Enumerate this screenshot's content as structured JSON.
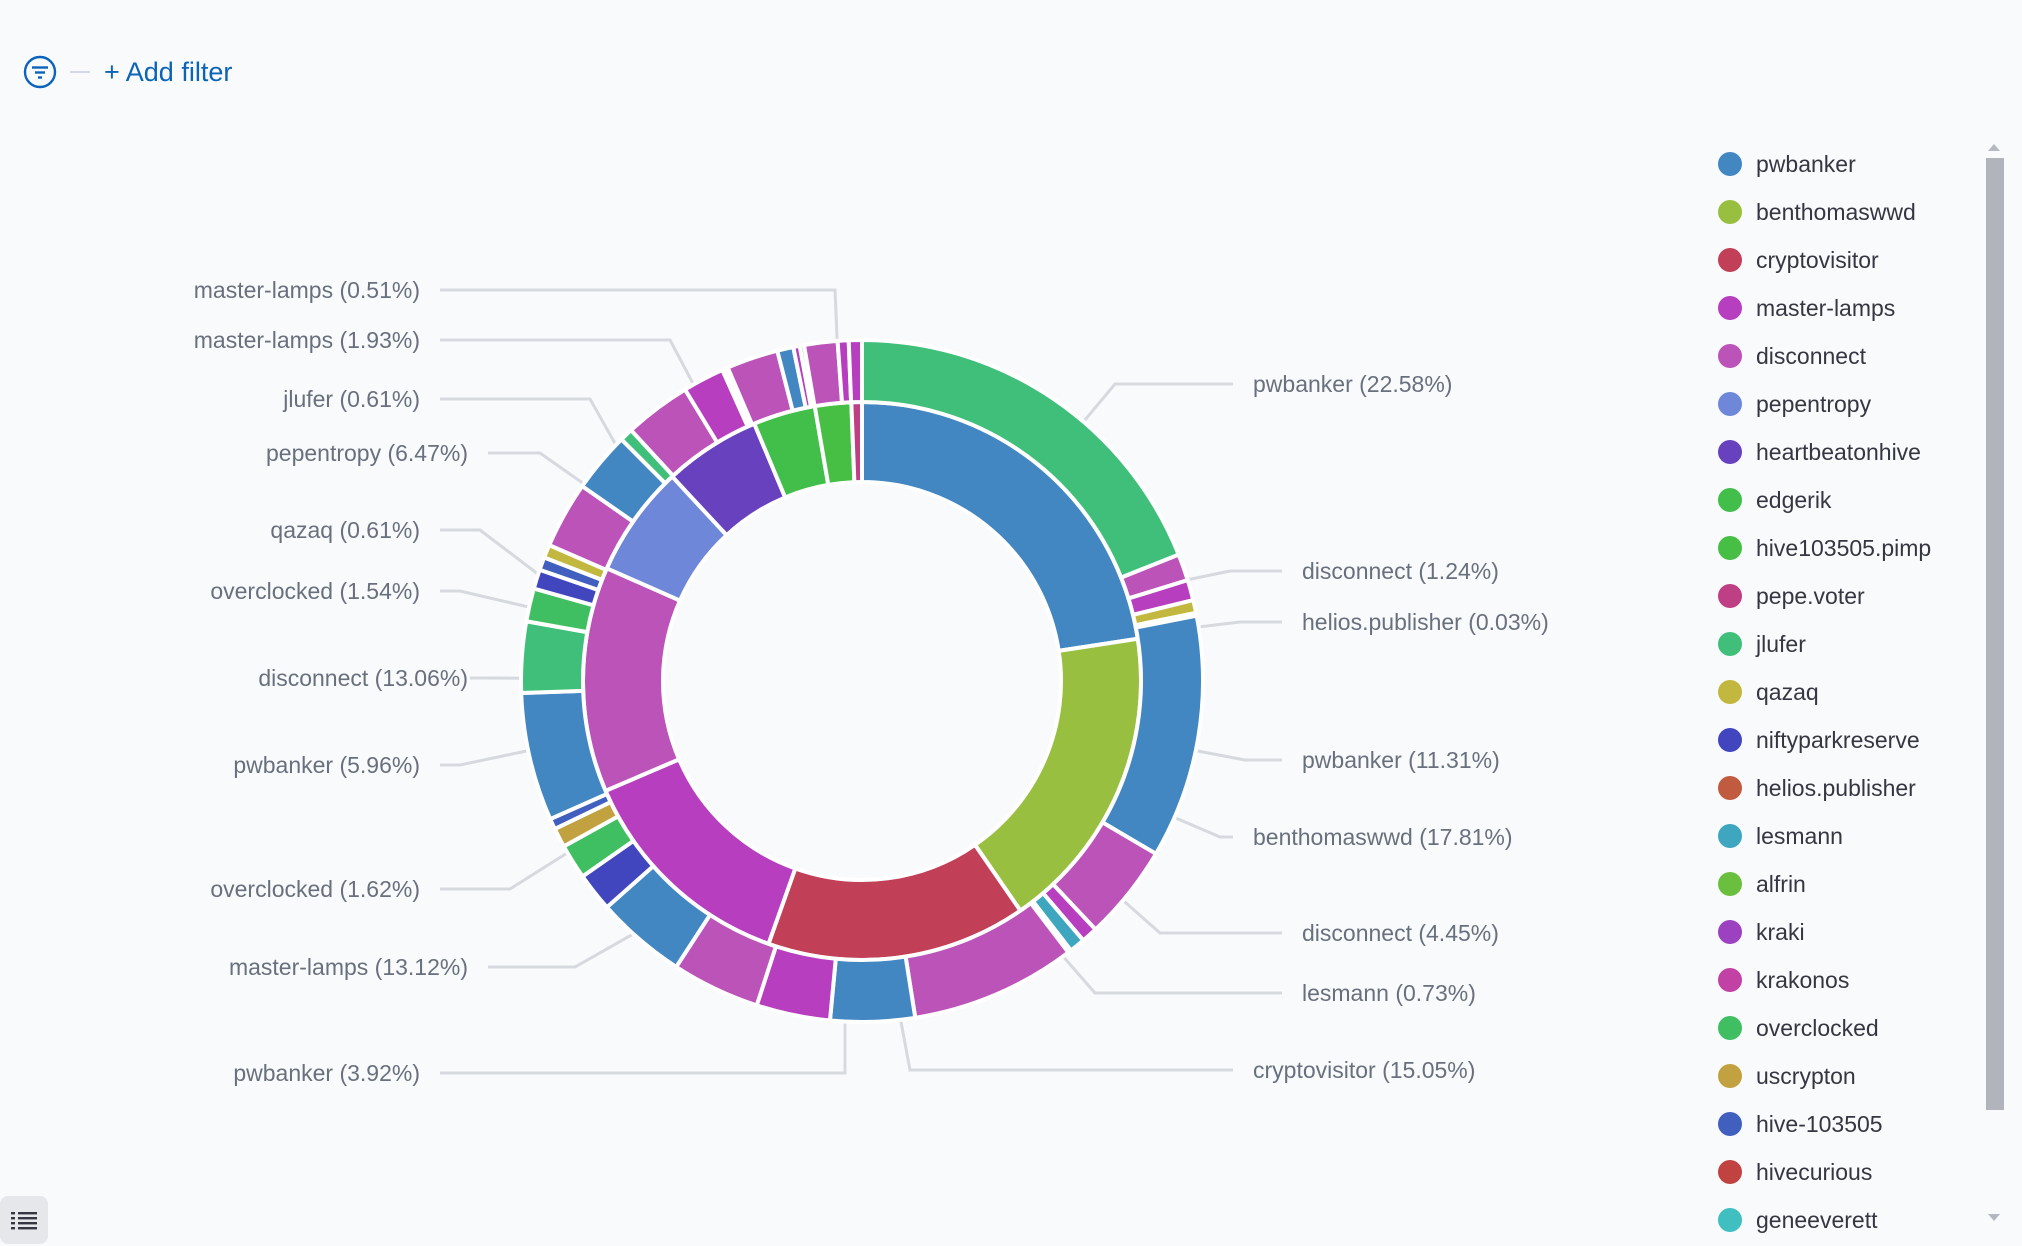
{
  "filter_bar": {
    "filter_icon": "filter-icon",
    "add_filter_label": "+ Add filter"
  },
  "legend": {
    "items": [
      {
        "label": "pwbanker",
        "color": "#4287c2"
      },
      {
        "label": "benthomaswwd",
        "color": "#98bf3f"
      },
      {
        "label": "cryptovisitor",
        "color": "#c13f57"
      },
      {
        "label": "master-lamps",
        "color": "#b63ebf"
      },
      {
        "label": "disconnect",
        "color": "#bb53b9"
      },
      {
        "label": "pepentropy",
        "color": "#6e87d8"
      },
      {
        "label": "heartbeatonhive",
        "color": "#6741be"
      },
      {
        "label": "edgerik",
        "color": "#42be4a"
      },
      {
        "label": "hive103505.pimp",
        "color": "#46bf44"
      },
      {
        "label": "pepe.voter",
        "color": "#bf3f85"
      },
      {
        "label": "jlufer",
        "color": "#40bf7b"
      },
      {
        "label": "qazaq",
        "color": "#c2b73f"
      },
      {
        "label": "niftyparkreserve",
        "color": "#4146bf"
      },
      {
        "label": "helios.publisher",
        "color": "#c05b40"
      },
      {
        "label": "lesmann",
        "color": "#3fa6bf"
      },
      {
        "label": "alfrin",
        "color": "#6bbf3f"
      },
      {
        "label": "kraki",
        "color": "#9c42c1"
      },
      {
        "label": "krakonos",
        "color": "#c142a4"
      },
      {
        "label": "overclocked",
        "color": "#3fbf62"
      },
      {
        "label": "uscrypton",
        "color": "#c1a140"
      },
      {
        "label": "hive-103505",
        "color": "#415fbf"
      },
      {
        "label": "hivecurious",
        "color": "#c04241"
      },
      {
        "label": "geneeverett",
        "color": "#3fbfbf"
      }
    ]
  },
  "chart_data": {
    "type": "pie",
    "subtype": "multi-level donut (sunburst)",
    "legend_position": "right",
    "inner_ring": [
      {
        "label": "pwbanker",
        "value": 22.58,
        "color": "#4287c2"
      },
      {
        "label": "benthomaswwd",
        "value": 17.81,
        "color": "#98bf3f"
      },
      {
        "label": "cryptovisitor",
        "value": 15.05,
        "color": "#c13f57"
      },
      {
        "label": "master-lamps",
        "value": 13.12,
        "color": "#b63ebf"
      },
      {
        "label": "disconnect",
        "value": 13.06,
        "color": "#bb53b9"
      },
      {
        "label": "pepentropy",
        "value": 6.47,
        "color": "#6e87d8"
      },
      {
        "label": "heartbeatonhive",
        "value": 5.6,
        "color": "#6741be"
      },
      {
        "label": "edgerik",
        "value": 3.6,
        "color": "#42be4a"
      },
      {
        "label": "hive103505.pimp",
        "value": 2.1,
        "color": "#46bf44"
      },
      {
        "label": "pepe.voter",
        "value": 0.61,
        "color": "#bf3f85"
      }
    ],
    "outer_ring": [
      {
        "label": "jlufer",
        "value": 18.6,
        "color": "#40bf7b",
        "parent": "pwbanker"
      },
      {
        "label": "disconnect",
        "value": 1.24,
        "color": "#bb53b9",
        "parent": "pwbanker"
      },
      {
        "label": "master-lamps",
        "value": 0.95,
        "color": "#b63ebf",
        "parent": "pwbanker"
      },
      {
        "label": "qazaq",
        "value": 0.6,
        "color": "#c2b73f",
        "parent": "pwbanker"
      },
      {
        "label": "niftyparkreserve",
        "value": 0.1,
        "color": "#4146bf",
        "parent": "pwbanker"
      },
      {
        "label": "helios.publisher",
        "value": 0.03,
        "color": "#c05b40",
        "parent": "pwbanker"
      },
      {
        "label": "pwbanker",
        "value": 11.31,
        "color": "#4287c2",
        "parent": "benthomaswwd"
      },
      {
        "label": "disconnect",
        "value": 4.45,
        "color": "#bb53b9",
        "parent": "benthomaswwd"
      },
      {
        "label": "master-lamps",
        "value": 0.75,
        "color": "#b63ebf",
        "parent": "benthomaswwd"
      },
      {
        "label": "lesmann",
        "value": 0.73,
        "color": "#3fa6bf",
        "parent": "benthomaswwd"
      },
      {
        "label": "niftyparkreserve",
        "value": 0.15,
        "color": "#4146bf",
        "parent": "benthomaswwd"
      },
      {
        "label": "disconnect",
        "value": 7.7,
        "color": "#bb53b9",
        "parent": "cryptovisitor"
      },
      {
        "label": "pwbanker",
        "value": 3.92,
        "color": "#4287c2",
        "parent": "cryptovisitor"
      },
      {
        "label": "master-lamps",
        "value": 3.43,
        "color": "#b63ebf",
        "parent": "cryptovisitor"
      },
      {
        "label": "disconnect",
        "value": 4.1,
        "color": "#bb53b9",
        "parent": "master-lamps"
      },
      {
        "label": "pwbanker",
        "value": 4.2,
        "color": "#4287c2",
        "parent": "master-lamps"
      },
      {
        "label": "niftyparkreserve",
        "value": 1.8,
        "color": "#4146bf",
        "parent": "master-lamps"
      },
      {
        "label": "overclocked",
        "value": 1.62,
        "color": "#3fbf62",
        "parent": "master-lamps"
      },
      {
        "label": "uscrypton",
        "value": 0.9,
        "color": "#c1a140",
        "parent": "master-lamps"
      },
      {
        "label": "hive-103505",
        "value": 0.5,
        "color": "#415fbf",
        "parent": "master-lamps"
      },
      {
        "label": "pwbanker",
        "value": 5.96,
        "color": "#4287c2",
        "parent": "disconnect"
      },
      {
        "label": "jlufer",
        "value": 3.3,
        "color": "#40bf7b",
        "parent": "disconnect"
      },
      {
        "label": "overclocked",
        "value": 1.54,
        "color": "#3fbf62",
        "parent": "disconnect"
      },
      {
        "label": "niftyparkreserve",
        "value": 0.9,
        "color": "#4146bf",
        "parent": "disconnect"
      },
      {
        "label": "hive-103505",
        "value": 0.6,
        "color": "#415fbf",
        "parent": "disconnect"
      },
      {
        "label": "qazaq",
        "value": 0.61,
        "color": "#c2b73f",
        "parent": "disconnect"
      },
      {
        "label": "disconnect",
        "value": 3.1,
        "color": "#bb53b9",
        "parent": "pepentropy"
      },
      {
        "label": "pwbanker",
        "value": 2.8,
        "color": "#4287c2",
        "parent": "pepentropy"
      },
      {
        "label": "jlufer",
        "value": 0.61,
        "color": "#40bf7b",
        "parent": "pepentropy"
      },
      {
        "label": "disconnect",
        "value": 3.1,
        "color": "#bb53b9",
        "parent": "heartbeatonhive"
      },
      {
        "label": "master-lamps",
        "value": 1.93,
        "color": "#b63ebf",
        "parent": "heartbeatonhive"
      },
      {
        "label": "lesmann",
        "value": 0.15,
        "color": "#3fa6bf",
        "parent": "heartbeatonhive"
      },
      {
        "label": "alfrin",
        "value": 0.12,
        "color": "#6bbf3f",
        "parent": "heartbeatonhive"
      },
      {
        "label": "disconnect",
        "value": 2.4,
        "color": "#bb53b9",
        "parent": "edgerik"
      },
      {
        "label": "pwbanker",
        "value": 0.75,
        "color": "#4287c2",
        "parent": "edgerik"
      },
      {
        "label": "master-lamps",
        "value": 0.3,
        "color": "#b63ebf",
        "parent": "edgerik"
      },
      {
        "label": "overclocked",
        "value": 0.2,
        "color": "#3fbf62",
        "parent": "edgerik"
      },
      {
        "label": "disconnect",
        "value": 1.55,
        "color": "#bb53b9",
        "parent": "hive103505.pimp"
      },
      {
        "label": "master-lamps",
        "value": 0.51,
        "color": "#b63ebf",
        "parent": "hive103505.pimp"
      },
      {
        "label": "master-lamps",
        "value": 0.61,
        "color": "#b63ebf",
        "parent": "pepe.voter"
      }
    ],
    "callouts": [
      {
        "text": "pwbanker (22.58%)",
        "side": "right"
      },
      {
        "text": "disconnect (1.24%)",
        "side": "right"
      },
      {
        "text": "helios.publisher (0.03%)",
        "side": "right"
      },
      {
        "text": "pwbanker (11.31%)",
        "side": "right"
      },
      {
        "text": "benthomaswwd (17.81%)",
        "side": "right"
      },
      {
        "text": "disconnect (4.45%)",
        "side": "right"
      },
      {
        "text": "lesmann (0.73%)",
        "side": "right"
      },
      {
        "text": "cryptovisitor (15.05%)",
        "side": "right"
      },
      {
        "text": "master-lamps (0.51%)",
        "side": "left"
      },
      {
        "text": "master-lamps (1.93%)",
        "side": "left"
      },
      {
        "text": "jlufer (0.61%)",
        "side": "left"
      },
      {
        "text": "pepentropy (6.47%)",
        "side": "left"
      },
      {
        "text": "qazaq (0.61%)",
        "side": "left"
      },
      {
        "text": "overclocked (1.54%)",
        "side": "left"
      },
      {
        "text": "disconnect (13.06%)",
        "side": "left"
      },
      {
        "text": "pwbanker (5.96%)",
        "side": "left"
      },
      {
        "text": "overclocked (1.62%)",
        "side": "left"
      },
      {
        "text": "master-lamps (13.12%)",
        "side": "left"
      },
      {
        "text": "pwbanker (3.92%)",
        "side": "left"
      }
    ]
  }
}
